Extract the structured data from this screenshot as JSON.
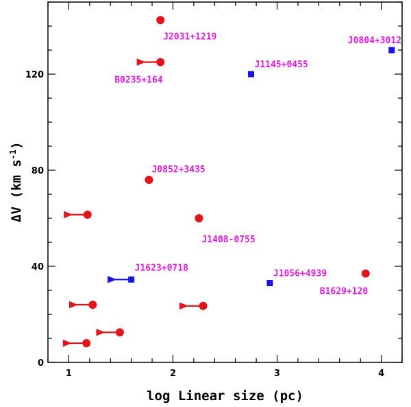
{
  "chart_data": {
    "type": "scatter",
    "title": "",
    "xlabel": "log Linear size (pc)",
    "ylabel": "ΔV (km s⁻¹)",
    "ylabel_main": "ΔV (km s",
    "ylabel_exp": "-1",
    "ylabel_close": ")",
    "xlim": [
      0.8,
      4.2
    ],
    "ylim": [
      0,
      150
    ],
    "x_ticks": [
      1,
      2,
      3,
      4
    ],
    "y_ticks": [
      0,
      40,
      80,
      120
    ],
    "grid": false,
    "colors": {
      "circle": "#e0161c",
      "square": "#1a12e0",
      "label": "#e01ae0"
    },
    "series": [
      {
        "name": "circles",
        "marker": "circle",
        "points": [
          {
            "x": 1.88,
            "y": 142.5,
            "upper_limit": false,
            "label": "J2031+1219"
          },
          {
            "x": 1.88,
            "y": 125,
            "upper_limit": true,
            "label": "B0235+164"
          },
          {
            "x": 1.77,
            "y": 76,
            "upper_limit": false,
            "label": "J0852+3435"
          },
          {
            "x": 2.25,
            "y": 60,
            "upper_limit": false,
            "label": "J1408-0755"
          },
          {
            "x": 3.85,
            "y": 37,
            "upper_limit": false,
            "label": "B1629+120"
          },
          {
            "x": 1.18,
            "y": 61.5,
            "upper_limit": true,
            "label": ""
          },
          {
            "x": 1.23,
            "y": 24,
            "upper_limit": true,
            "label": ""
          },
          {
            "x": 2.29,
            "y": 23.5,
            "upper_limit": true,
            "label": ""
          },
          {
            "x": 1.49,
            "y": 12.5,
            "upper_limit": true,
            "label": ""
          },
          {
            "x": 1.17,
            "y": 8,
            "upper_limit": true,
            "label": ""
          }
        ]
      },
      {
        "name": "squares",
        "marker": "square",
        "points": [
          {
            "x": 4.1,
            "y": 130,
            "upper_limit": false,
            "label": "J0804+3012"
          },
          {
            "x": 2.75,
            "y": 120,
            "upper_limit": false,
            "label": "J1145+0455"
          },
          {
            "x": 1.6,
            "y": 34.5,
            "upper_limit": true,
            "label": "J1623+0718"
          },
          {
            "x": 2.93,
            "y": 33,
            "upper_limit": false,
            "label": "J1056+4939"
          }
        ]
      }
    ]
  }
}
